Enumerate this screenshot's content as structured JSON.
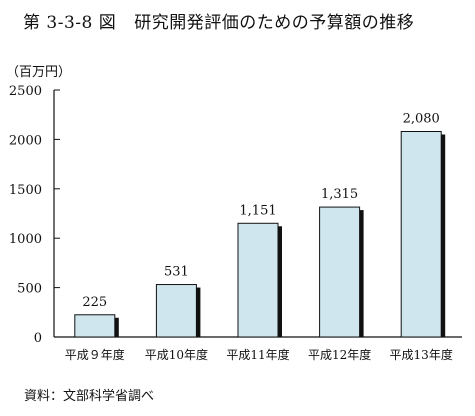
{
  "figure": {
    "number": "第 3-3-8 図",
    "title": "研究開発評価のための予算額の推移",
    "source": "資料：文部科学省調べ"
  },
  "chart_data": {
    "type": "bar",
    "categories": [
      "平成９年度",
      "平成10年度",
      "平成11年度",
      "平成12年度",
      "平成13年度"
    ],
    "values": [
      225,
      531,
      1151,
      1315,
      2080
    ],
    "value_labels": [
      "225",
      "531",
      "1,151",
      "1,315",
      "2,080"
    ],
    "unit_label": "（百万円）",
    "ylim": [
      0,
      2500
    ],
    "yticks": [
      0,
      500,
      1000,
      1500,
      2000,
      2500
    ],
    "grid": false,
    "bar_color": "#cfe6ee",
    "bar_shadow_color": "#111111"
  }
}
